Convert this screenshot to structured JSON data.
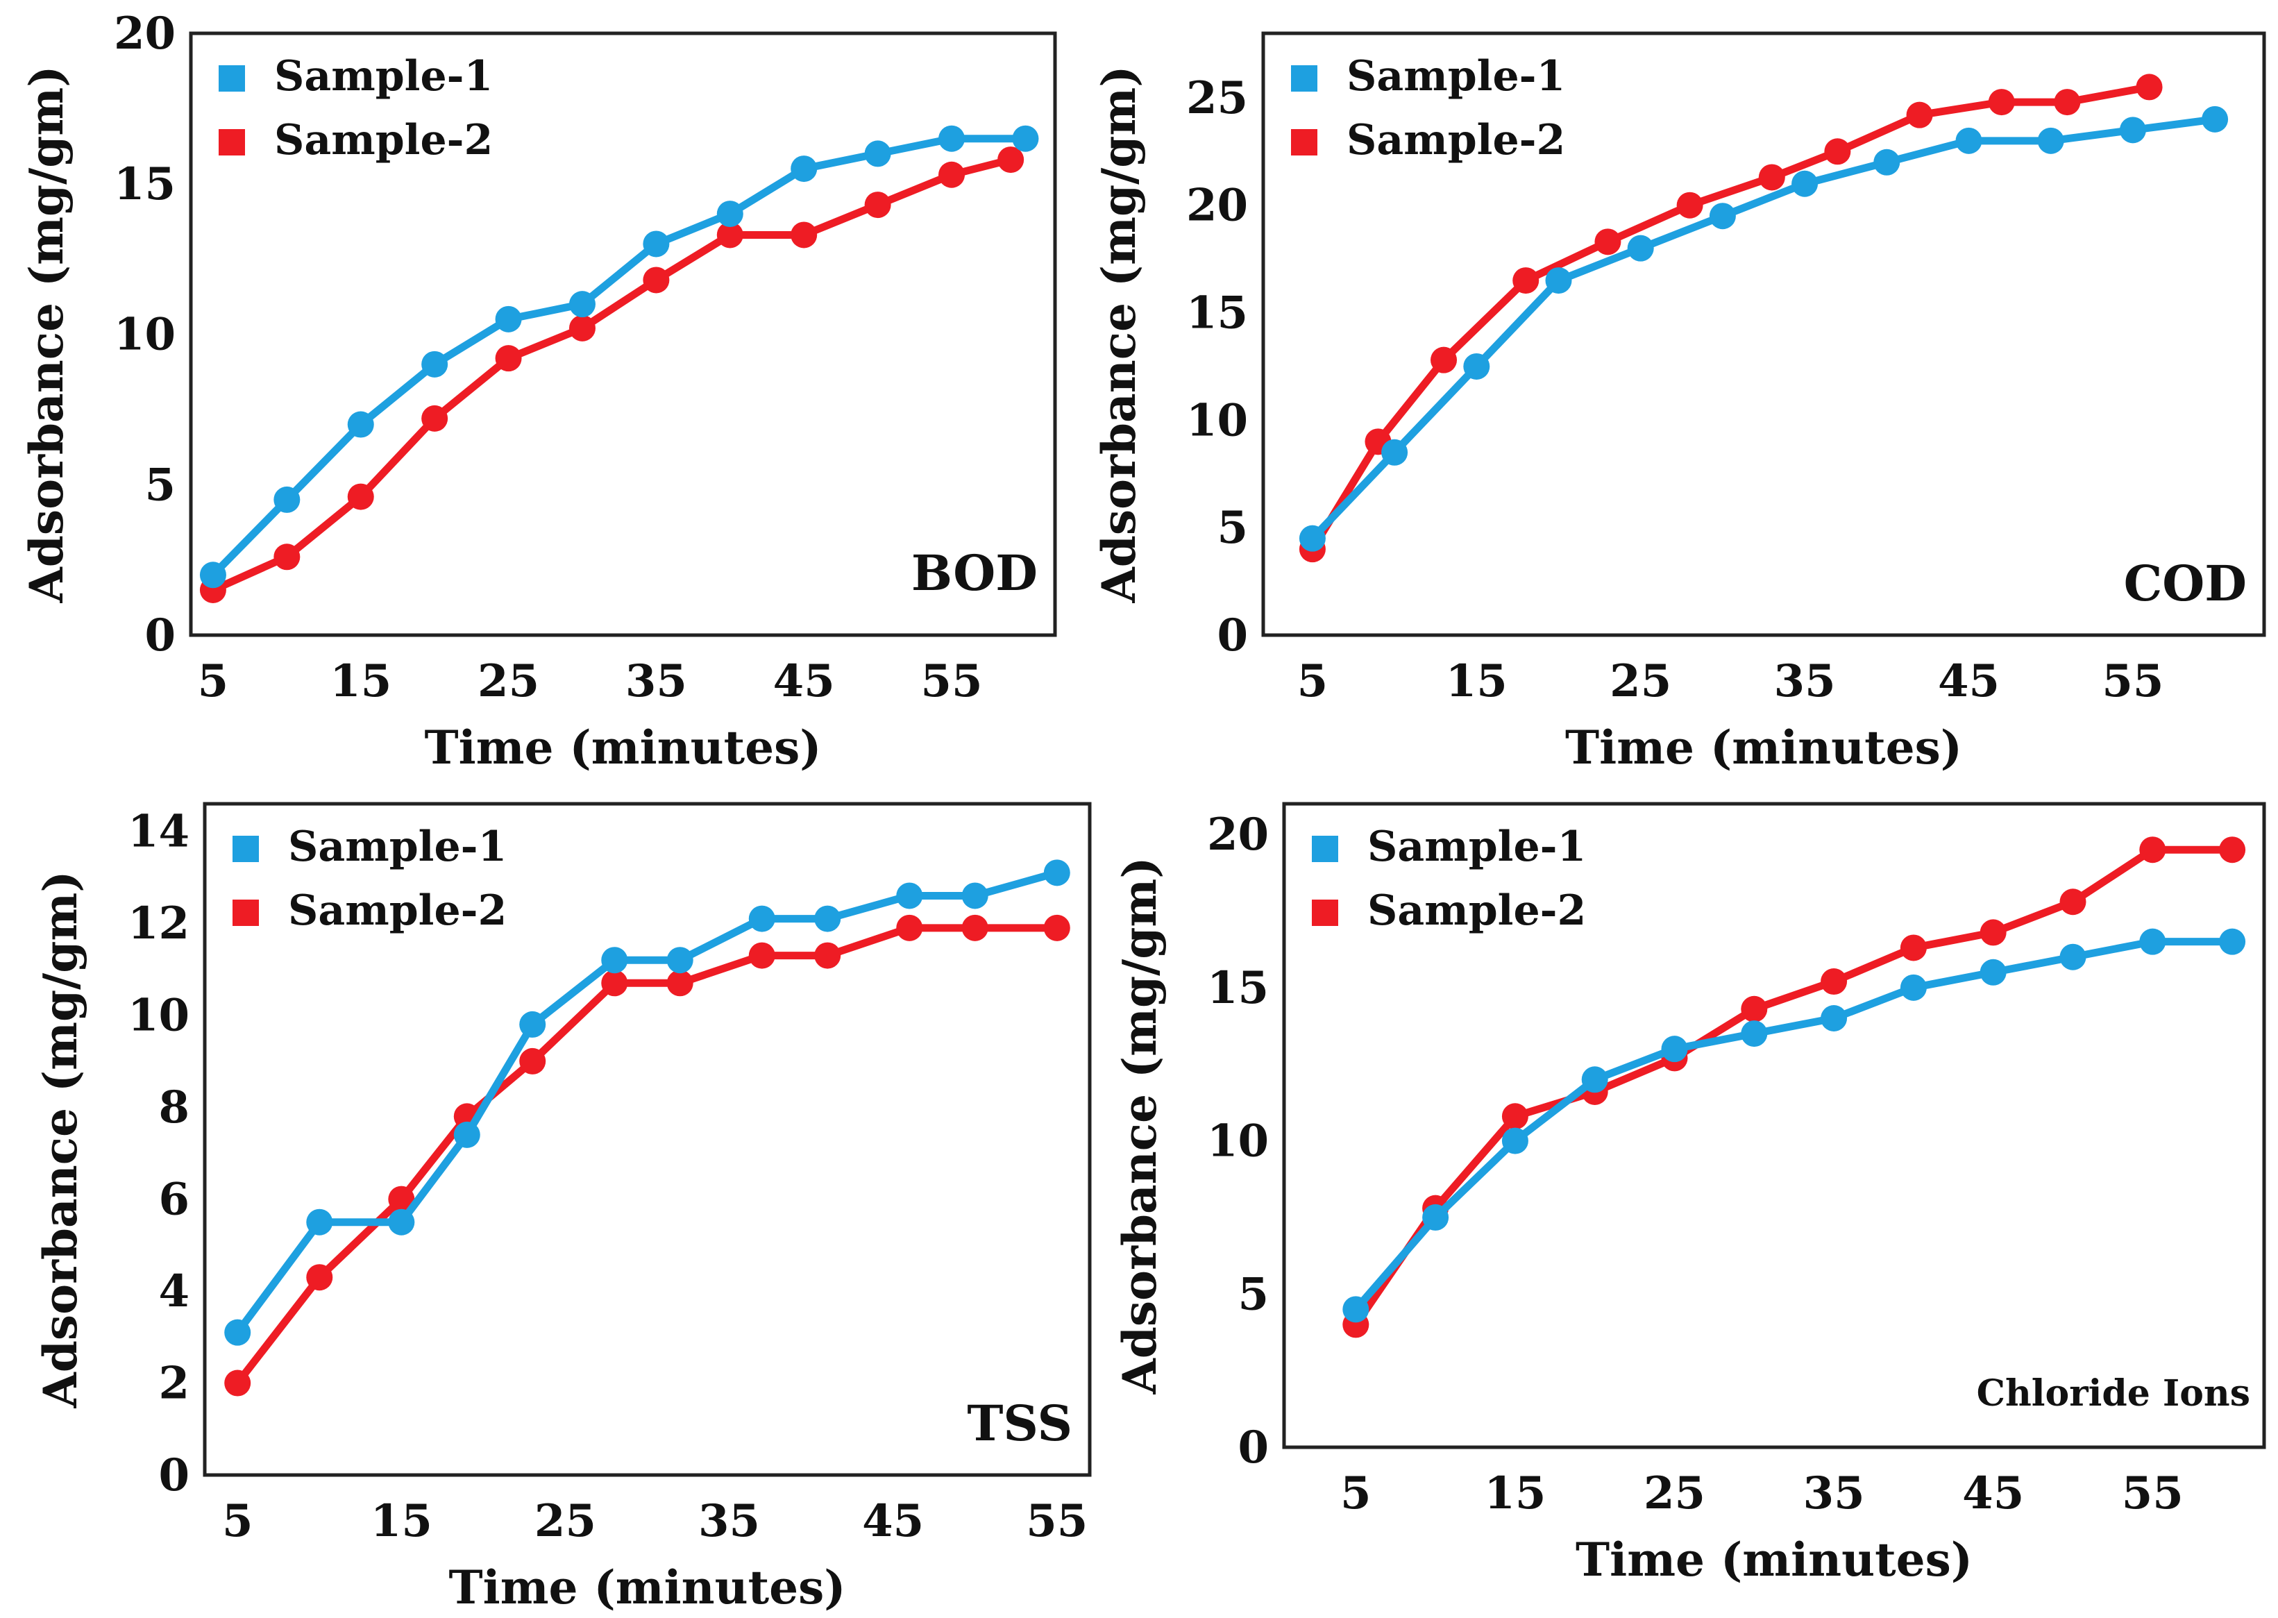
{
  "chart_data": [
    {
      "type": "line",
      "annotation": "BOD",
      "xlabel": "Time (minutes)",
      "ylabel": "Adsorbance (mg/gm)",
      "xlim": [
        3.5,
        62
      ],
      "ylim": [
        0,
        20
      ],
      "xticks": [
        5,
        15,
        25,
        35,
        45,
        55
      ],
      "yticks": [
        0,
        5,
        10,
        15,
        20
      ],
      "legend_position": "top-left",
      "series": [
        {
          "name": "Sample-1",
          "color": "#1ea0e0",
          "x": [
            5,
            10,
            15,
            20,
            25,
            30,
            35,
            40,
            45,
            50,
            55,
            60
          ],
          "y": [
            2.0,
            4.5,
            7.0,
            9.0,
            10.5,
            11.0,
            13.0,
            14.0,
            15.5,
            16.0,
            16.5,
            16.5
          ]
        },
        {
          "name": "Sample-2",
          "color": "#ee1c24",
          "x": [
            5,
            10,
            15,
            20,
            25,
            30,
            35,
            40,
            45,
            50,
            55,
            59
          ],
          "y": [
            1.5,
            2.6,
            4.6,
            7.2,
            9.2,
            10.2,
            11.8,
            13.3,
            13.3,
            14.3,
            15.3,
            15.8
          ]
        }
      ]
    },
    {
      "type": "line",
      "annotation": "COD",
      "xlabel": "Time (minutes)",
      "ylabel": "Adsorbance (mg/gm)",
      "xlim": [
        2,
        63
      ],
      "ylim": [
        0,
        28
      ],
      "xticks": [
        5,
        15,
        25,
        35,
        45,
        55
      ],
      "yticks": [
        0,
        5,
        10,
        15,
        20,
        25
      ],
      "legend_position": "top-left",
      "series": [
        {
          "name": "Sample-1",
          "color": "#1ea0e0",
          "x": [
            5,
            10,
            15,
            20,
            25,
            30,
            35,
            40,
            45,
            50,
            55,
            60
          ],
          "y": [
            4.5,
            8.5,
            12.5,
            16.5,
            18.0,
            19.5,
            21.0,
            22.0,
            23.0,
            23.0,
            23.5,
            24.0
          ]
        },
        {
          "name": "Sample-2",
          "color": "#ee1c24",
          "x": [
            5,
            9,
            13,
            18,
            23,
            28,
            33,
            37,
            42,
            47,
            51,
            56
          ],
          "y": [
            4.0,
            9.0,
            12.8,
            16.5,
            18.3,
            20.0,
            21.3,
            22.5,
            24.2,
            24.8,
            24.8,
            25.5
          ]
        }
      ]
    },
    {
      "type": "line",
      "annotation": "TSS",
      "xlabel": "Time (minutes)",
      "ylabel": "Adsorbance (mg/gm)",
      "xlim": [
        3,
        57
      ],
      "ylim": [
        0,
        14.6
      ],
      "xticks": [
        5,
        15,
        25,
        35,
        45,
        55
      ],
      "yticks": [
        0,
        2,
        4,
        6,
        8,
        10,
        12,
        14
      ],
      "legend_position": "top-left",
      "series": [
        {
          "name": "Sample-1",
          "color": "#1ea0e0",
          "x": [
            5,
            10,
            15,
            19,
            23,
            28,
            32,
            37,
            41,
            46,
            50,
            55
          ],
          "y": [
            3.1,
            5.5,
            5.5,
            7.4,
            9.8,
            11.2,
            11.2,
            12.1,
            12.1,
            12.6,
            12.6,
            13.1
          ]
        },
        {
          "name": "Sample-2",
          "color": "#ee1c24",
          "x": [
            5,
            10,
            15,
            19,
            23,
            28,
            32,
            37,
            41,
            46,
            50,
            55
          ],
          "y": [
            2.0,
            4.3,
            6.0,
            7.8,
            9.0,
            10.7,
            10.7,
            11.3,
            11.3,
            11.9,
            11.9,
            11.9
          ]
        }
      ]
    },
    {
      "type": "line",
      "annotation": "Chloride Ions",
      "xlabel": "Time (minutes)",
      "ylabel": "Adsorbance (mg/gm)",
      "xlim": [
        0.5,
        62
      ],
      "ylim": [
        0,
        21
      ],
      "xticks": [
        5,
        15,
        25,
        35,
        45,
        55
      ],
      "yticks": [
        0,
        5,
        10,
        15,
        20
      ],
      "legend_position": "top-left",
      "series": [
        {
          "name": "Sample-1",
          "color": "#1ea0e0",
          "x": [
            5,
            10,
            15,
            20,
            25,
            30,
            35,
            40,
            45,
            50,
            55,
            60
          ],
          "y": [
            4.5,
            7.5,
            10.0,
            12.0,
            13.0,
            13.5,
            14.0,
            15.0,
            15.5,
            16.0,
            16.5,
            16.5
          ]
        },
        {
          "name": "Sample-2",
          "color": "#ee1c24",
          "x": [
            5,
            10,
            15,
            20,
            25,
            30,
            35,
            40,
            45,
            50,
            55,
            60
          ],
          "y": [
            4.0,
            7.8,
            10.8,
            11.6,
            12.7,
            14.3,
            15.2,
            16.3,
            16.8,
            17.8,
            19.5,
            19.5
          ]
        }
      ]
    }
  ]
}
